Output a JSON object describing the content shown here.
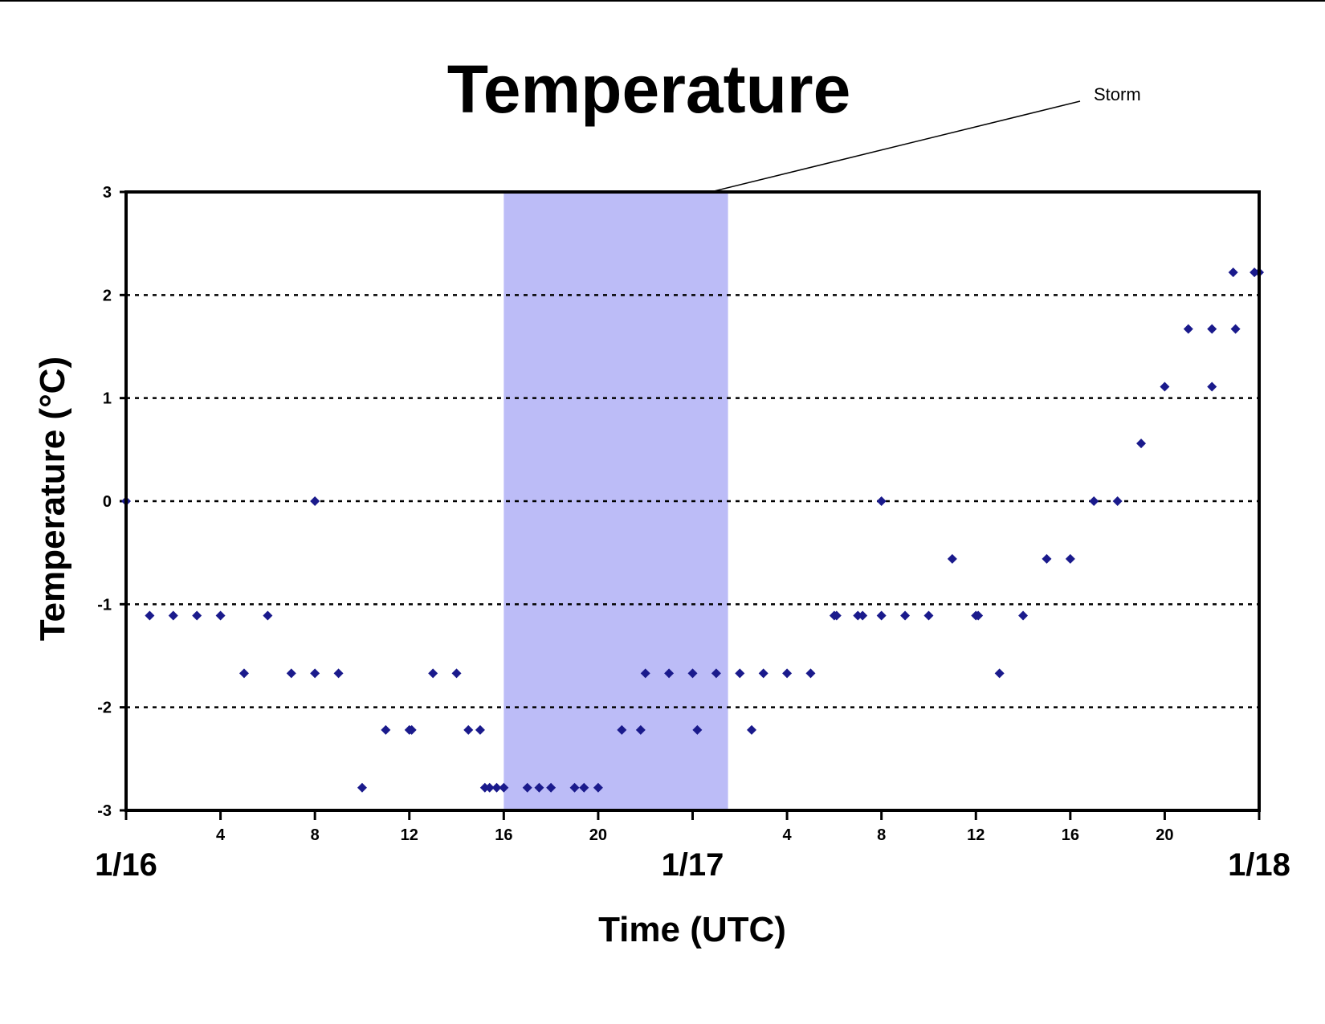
{
  "chart_data": {
    "type": "scatter",
    "title": "Temperature",
    "xlabel": "Time (UTC)",
    "ylabel": "Temperature (°C)",
    "ylim": [
      -3,
      3
    ],
    "yticks": [
      3,
      2,
      1,
      0,
      -1,
      -2,
      -3
    ],
    "xlim": [
      "1/16 00:00",
      "1/18 00:00"
    ],
    "xticks": [
      {
        "label": "",
        "hour": 0
      },
      {
        "label": "4",
        "hour": 4
      },
      {
        "label": "8",
        "hour": 8
      },
      {
        "label": "12",
        "hour": 12
      },
      {
        "label": "16",
        "hour": 16
      },
      {
        "label": "20",
        "hour": 20
      },
      {
        "label": "",
        "hour": 24
      },
      {
        "label": "4",
        "hour": 28
      },
      {
        "label": "8",
        "hour": 32
      },
      {
        "label": "12",
        "hour": 36
      },
      {
        "label": "16",
        "hour": 40
      },
      {
        "label": "20",
        "hour": 44
      },
      {
        "label": "",
        "hour": 48
      }
    ],
    "day_labels": [
      {
        "label": "1/16",
        "hour": 0
      },
      {
        "label": "1/17",
        "hour": 24
      },
      {
        "label": "1/18",
        "hour": 48
      }
    ],
    "grid": "horizontal dotted",
    "marker_color": "#1a1a8c",
    "annotation": {
      "text": "Storm",
      "start_hour": 16,
      "end_hour": 25.5,
      "color": "#bcbcf7"
    },
    "series": [
      {
        "x": [
          0,
          1,
          2,
          3,
          4,
          5,
          6,
          7,
          8,
          8,
          9,
          10,
          11,
          12,
          12.1,
          13,
          14,
          14.5,
          15,
          15.2,
          15.4,
          15.7,
          16,
          17,
          17.5,
          18,
          19,
          19.4,
          20,
          21,
          21.8,
          22,
          23,
          24,
          24.2,
          25,
          26,
          26.5,
          27,
          28,
          29,
          30,
          30.1,
          31,
          31.2,
          32,
          32,
          33,
          34,
          35,
          36,
          36.1,
          37,
          38,
          39,
          40,
          41,
          42,
          43,
          44,
          45,
          46,
          46,
          46.9,
          47,
          47.8,
          48
        ],
        "y": [
          0,
          -1.11,
          -1.11,
          -1.11,
          -1.11,
          -1.67,
          -1.11,
          -1.67,
          -1.67,
          0,
          -1.67,
          -2.78,
          -2.22,
          -2.22,
          -2.22,
          -1.67,
          -1.67,
          -2.22,
          -2.22,
          -2.78,
          -2.78,
          -2.78,
          -2.78,
          -2.78,
          -2.78,
          -2.78,
          -2.78,
          -2.78,
          -2.78,
          -2.22,
          -2.22,
          -1.67,
          -1.67,
          -1.67,
          -2.22,
          -1.67,
          -1.67,
          -2.22,
          -1.67,
          -1.67,
          -1.67,
          -1.11,
          -1.11,
          -1.11,
          -1.11,
          -1.11,
          0,
          -1.11,
          -1.11,
          -0.56,
          -1.11,
          -1.11,
          -1.67,
          -1.11,
          -0.56,
          -0.56,
          0,
          0,
          0.56,
          1.11,
          1.67,
          1.11,
          1.67,
          2.22,
          1.67,
          2.22,
          2.22
        ]
      }
    ]
  }
}
